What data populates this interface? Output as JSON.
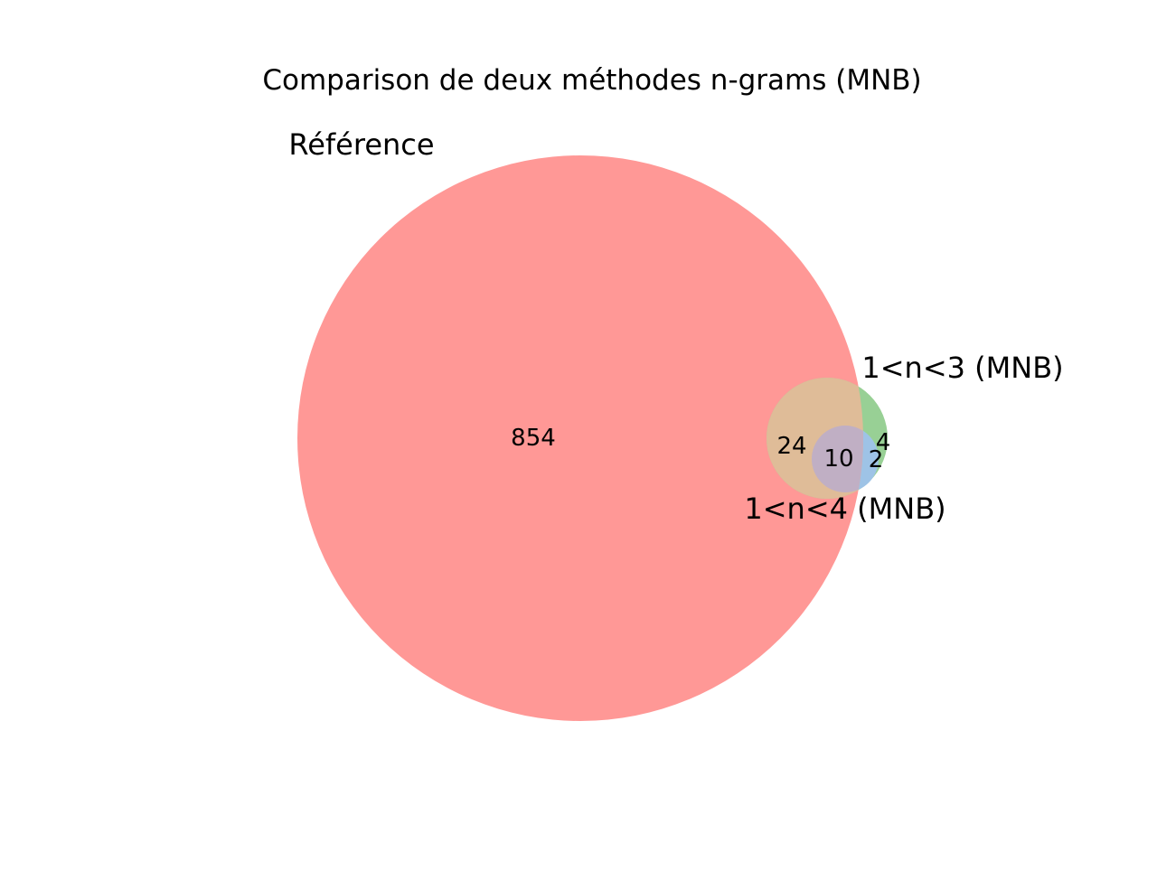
{
  "chart_data": {
    "type": "venn",
    "title": "Comparison de deux méthodes n-grams (MNB)",
    "sets": [
      {
        "name": "Référence",
        "color": "#ff9896"
      },
      {
        "name": "1<n<3 (MNB)",
        "color": "#98d095"
      },
      {
        "name": "1<n<4 (MNB)",
        "color": "#9ec3e6"
      }
    ],
    "regions": [
      {
        "sets": [
          "Référence"
        ],
        "value": 854
      },
      {
        "sets": [
          "Référence",
          "1<n<3 (MNB)"
        ],
        "value": 24
      },
      {
        "sets": [
          "1<n<3 (MNB)"
        ],
        "value": 4
      },
      {
        "sets": [
          "1<n<3 (MNB)",
          "1<n<4 (MNB)"
        ],
        "value": 2
      },
      {
        "sets": [
          "Référence",
          "1<n<3 (MNB)",
          "1<n<4 (MNB)"
        ],
        "value": 10
      }
    ]
  }
}
